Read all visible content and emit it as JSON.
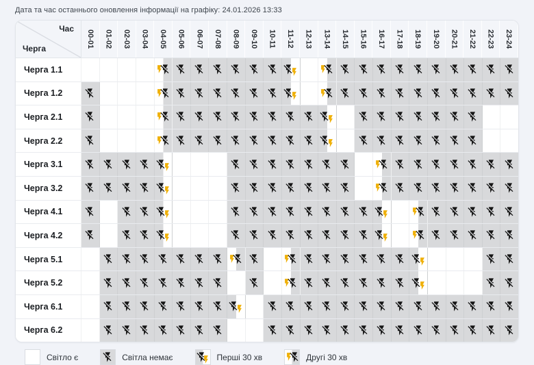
{
  "meta": {
    "update_label": "Дата та час останнього оновлення інформації на графіку: 24.01.2026 13:33"
  },
  "table": {
    "corner": {
      "top": "Час",
      "bottom": "Черга"
    },
    "hours": [
      "00-01",
      "01-02",
      "02-03",
      "03-04",
      "04-05",
      "05-06",
      "06-07",
      "07-08",
      "08-09",
      "09-10",
      "10-11",
      "11-12",
      "12-13",
      "13-14",
      "14-15",
      "15-16",
      "16-17",
      "17-18",
      "18-19",
      "19-20",
      "20-21",
      "21-22",
      "22-23",
      "23-24"
    ],
    "rows": [
      {
        "label": "Черга 1.1",
        "cells": [
          "on",
          "on",
          "on",
          "on",
          "second30",
          "off",
          "off",
          "off",
          "off",
          "off",
          "off",
          "first30",
          "on",
          "second30",
          "off",
          "off",
          "off",
          "off",
          "off",
          "off",
          "off",
          "off",
          "off",
          "off"
        ]
      },
      {
        "label": "Черга 1.2",
        "cells": [
          "off",
          "on",
          "on",
          "on",
          "second30",
          "off",
          "off",
          "off",
          "off",
          "off",
          "off",
          "first30",
          "on",
          "second30",
          "off",
          "off",
          "off",
          "off",
          "off",
          "off",
          "off",
          "off",
          "off",
          "off"
        ]
      },
      {
        "label": "Черга 2.1",
        "cells": [
          "off",
          "on",
          "on",
          "on",
          "second30",
          "off",
          "off",
          "off",
          "off",
          "off",
          "off",
          "off",
          "off",
          "first30",
          "on",
          "off",
          "off",
          "off",
          "off",
          "off",
          "off",
          "off",
          "on",
          "on"
        ]
      },
      {
        "label": "Черга 2.2",
        "cells": [
          "off",
          "on",
          "on",
          "on",
          "second30",
          "off",
          "off",
          "off",
          "off",
          "off",
          "off",
          "off",
          "off",
          "first30",
          "on",
          "off",
          "off",
          "off",
          "off",
          "off",
          "off",
          "off",
          "on",
          "on"
        ]
      },
      {
        "label": "Черга 3.1",
        "cells": [
          "off",
          "off",
          "off",
          "off",
          "first30",
          "on",
          "on",
          "on",
          "off",
          "off",
          "off",
          "off",
          "off",
          "off",
          "off",
          "on",
          "second30",
          "off",
          "off",
          "off",
          "off",
          "off",
          "off",
          "off"
        ]
      },
      {
        "label": "Черга 3.2",
        "cells": [
          "off",
          "off",
          "off",
          "off",
          "first30",
          "on",
          "on",
          "on",
          "off",
          "off",
          "off",
          "off",
          "off",
          "off",
          "off",
          "on",
          "second30",
          "off",
          "off",
          "off",
          "off",
          "off",
          "off",
          "off"
        ]
      },
      {
        "label": "Черга 4.1",
        "cells": [
          "off",
          "on",
          "off",
          "off",
          "first30",
          "on",
          "on",
          "on",
          "off",
          "off",
          "off",
          "off",
          "off",
          "off",
          "off",
          "off",
          "first30",
          "on",
          "second30",
          "off",
          "off",
          "off",
          "off",
          "off"
        ]
      },
      {
        "label": "Черга 4.2",
        "cells": [
          "off",
          "on",
          "off",
          "off",
          "first30",
          "on",
          "on",
          "on",
          "off",
          "off",
          "off",
          "off",
          "off",
          "off",
          "off",
          "off",
          "first30",
          "on",
          "second30",
          "off",
          "off",
          "off",
          "off",
          "off"
        ]
      },
      {
        "label": "Черга 5.1",
        "cells": [
          "on",
          "off",
          "off",
          "off",
          "off",
          "off",
          "off",
          "off",
          "second30",
          "off",
          "on",
          "second30",
          "off",
          "off",
          "off",
          "off",
          "off",
          "off",
          "first30",
          "on",
          "on",
          "on",
          "off",
          "off"
        ]
      },
      {
        "label": "Черга 5.2",
        "cells": [
          "on",
          "off",
          "off",
          "off",
          "off",
          "off",
          "off",
          "off",
          "on",
          "off",
          "on",
          "second30",
          "off",
          "off",
          "off",
          "off",
          "off",
          "off",
          "first30",
          "on",
          "on",
          "on",
          "off",
          "off"
        ]
      },
      {
        "label": "Черга 6.1",
        "cells": [
          "on",
          "off",
          "off",
          "off",
          "off",
          "off",
          "off",
          "off",
          "first30",
          "on",
          "off",
          "off",
          "off",
          "off",
          "off",
          "off",
          "off",
          "off",
          "off",
          "off",
          "off",
          "off",
          "off",
          "off"
        ]
      },
      {
        "label": "Черга 6.2",
        "cells": [
          "on",
          "off",
          "off",
          "off",
          "off",
          "off",
          "off",
          "off",
          "on",
          "on",
          "off",
          "off",
          "off",
          "off",
          "off",
          "off",
          "off",
          "off",
          "off",
          "off",
          "off",
          "off",
          "off",
          "off"
        ]
      }
    ]
  },
  "legend": {
    "items": [
      {
        "state": "on",
        "label": "Світло є"
      },
      {
        "state": "off",
        "label": "Світла немає"
      },
      {
        "state": "first30",
        "label": "Перші 30 хв"
      },
      {
        "state": "second30",
        "label": "Другі 30 хв"
      }
    ]
  },
  "colors": {
    "outage_cell": "#d8d9db",
    "power_cell": "#ffffff",
    "bolt_black": "#151515",
    "bolt_yellow": "#efb008",
    "page_background": "#f1f3f8"
  }
}
